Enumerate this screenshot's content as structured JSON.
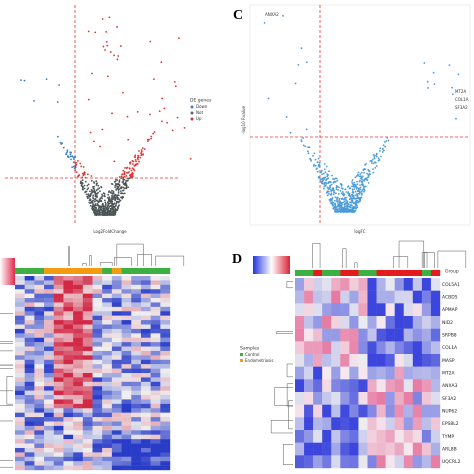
{
  "panel_a": {
    "x_label": "Log2FoldChange",
    "legend_title": "DE genes",
    "legend": [
      "Down",
      "Not",
      "Up"
    ]
  },
  "panel_c": {
    "letter": "C",
    "x_label": "logFC",
    "y_label": "-log10 P.value",
    "labels": [
      "ANXA2",
      "MT2A",
      "COL1A",
      "SF3A2"
    ]
  },
  "panel_b": {
    "legend_title": "Samples",
    "legend": [
      "Control",
      "Endometriosis"
    ]
  },
  "panel_d": {
    "letter": "D",
    "group_label": "Group",
    "genes": [
      "COL5A1",
      "ACBD5",
      "APMAP",
      "NID2",
      "SRPB8",
      "COL1A",
      "MASP",
      "MT2A",
      "ANXA3",
      "SF3A2",
      "NUP62",
      "EPS8L2",
      "TYMP",
      "ARL8B",
      "UQCRL2"
    ]
  }
}
